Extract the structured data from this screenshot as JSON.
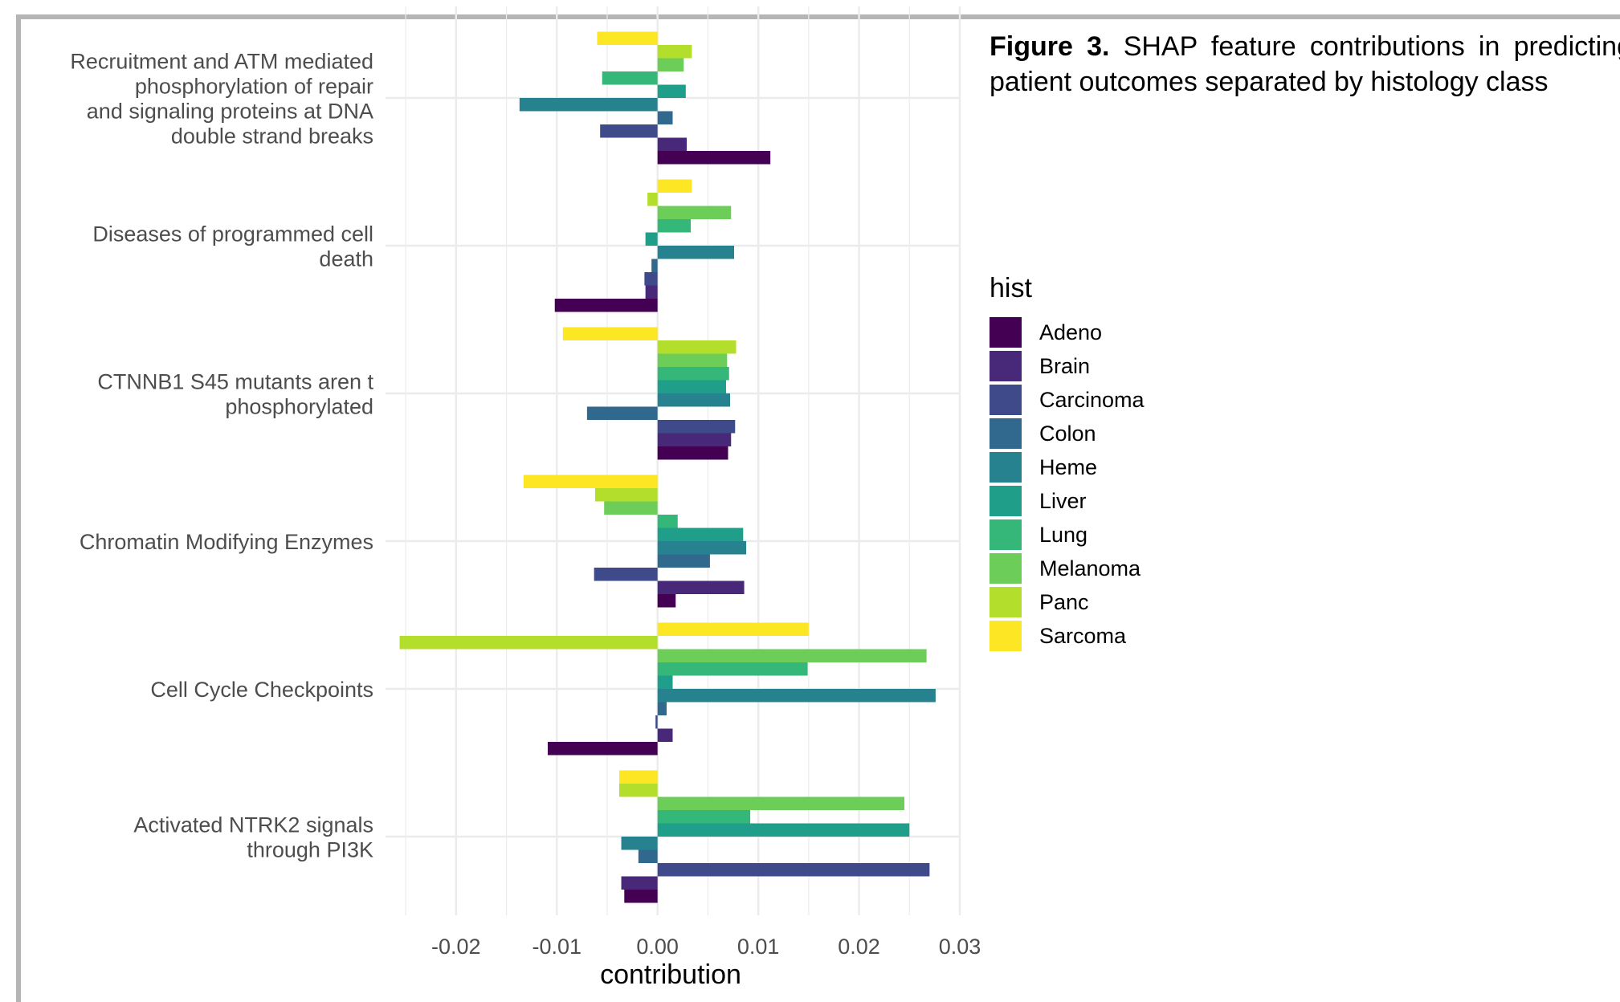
{
  "caption": {
    "label": "Figure 3.",
    "text": "SHAP feature contributions in predicting patient outcomes separated by histology class"
  },
  "legend": {
    "title": "hist"
  },
  "chart_data": {
    "type": "bar",
    "orientation": "horizontal",
    "xlabel": "contribution",
    "ylabel": "",
    "xlim": [
      -0.027,
      0.03
    ],
    "xticks": [
      -0.02,
      -0.01,
      0.0,
      0.01,
      0.02,
      0.03
    ],
    "xtick_labels": [
      "-0.02",
      "-0.01",
      "0.00",
      "0.01",
      "0.02",
      "0.03"
    ],
    "grid": true,
    "legend_position": "right",
    "categories": [
      "Recruitment and ATM mediated phosphorylation of repair and signaling proteins at DNA double strand breaks",
      "Diseases of programmed cell death",
      "CTNNB1 S45 mutants aren t phosphorylated",
      "Chromatin Modifying Enzymes",
      "Cell Cycle Checkpoints",
      "Activated NTRK2 signals through PI3K"
    ],
    "category_label_lines": [
      [
        "Recruitment and ATM mediated",
        "phosphorylation of repair",
        "and signaling proteins at DNA",
        "double strand breaks"
      ],
      [
        "Diseases of programmed cell",
        "death"
      ],
      [
        "CTNNB1 S45 mutants aren t",
        "phosphorylated"
      ],
      [
        "Chromatin Modifying Enzymes"
      ],
      [
        "Cell Cycle Checkpoints"
      ],
      [
        "Activated NTRK2 signals",
        "through PI3K"
      ]
    ],
    "series": [
      {
        "name": "Adeno",
        "color": "#440154",
        "values": [
          0.0112,
          -0.0102,
          0.007,
          0.0018,
          -0.0109,
          -0.0033
        ]
      },
      {
        "name": "Brain",
        "color": "#482878",
        "values": [
          0.0029,
          -0.0012,
          0.0073,
          0.0086,
          0.0015,
          -0.0036
        ]
      },
      {
        "name": "Carcinoma",
        "color": "#3E4A89",
        "values": [
          -0.0057,
          -0.0013,
          0.0077,
          -0.0063,
          -0.0002,
          0.027
        ]
      },
      {
        "name": "Colon",
        "color": "#31688E",
        "values": [
          0.0015,
          -0.0006,
          -0.007,
          0.0052,
          0.0009,
          -0.0019
        ]
      },
      {
        "name": "Heme",
        "color": "#26828E",
        "values": [
          -0.0137,
          0.0076,
          0.0072,
          0.0088,
          0.0276,
          -0.0036
        ]
      },
      {
        "name": "Liver",
        "color": "#1F9E89",
        "values": [
          0.0028,
          -0.0012,
          0.0068,
          0.0085,
          0.0015,
          0.025
        ]
      },
      {
        "name": "Lung",
        "color": "#35B779",
        "values": [
          -0.0055,
          0.0033,
          0.0071,
          0.002,
          0.0149,
          0.0092
        ]
      },
      {
        "name": "Melanoma",
        "color": "#6DCD59",
        "values": [
          0.0026,
          0.0073,
          0.0069,
          -0.0053,
          0.0267,
          0.0245
        ]
      },
      {
        "name": "Panc",
        "color": "#B4DE2C",
        "values": [
          0.0034,
          -0.001,
          0.0078,
          -0.0062,
          -0.0256,
          -0.0038
        ]
      },
      {
        "name": "Sarcoma",
        "color": "#FDE725",
        "values": [
          -0.006,
          0.0034,
          -0.0094,
          -0.0133,
          0.015,
          -0.0038
        ]
      }
    ]
  }
}
